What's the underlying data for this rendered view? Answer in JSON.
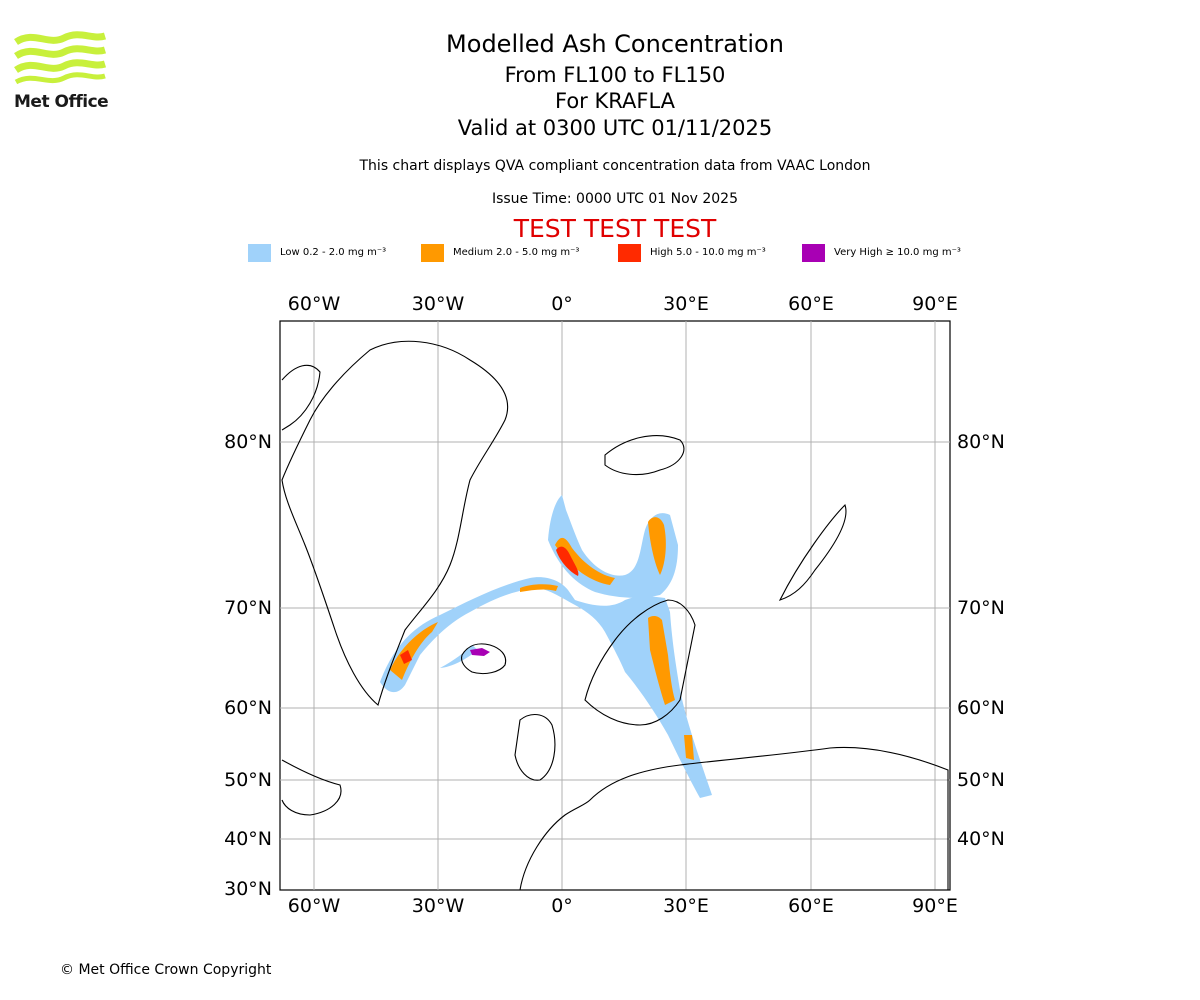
{
  "brand": {
    "logo_text": "Met Office",
    "logo_color": "#c8f03c"
  },
  "header": {
    "title": "Modelled Ash Concentration",
    "flight_levels": "From FL100 to FL150",
    "volcano": "For KRAFLA",
    "valid_time": "Valid at 0300 UTC 01/11/2025",
    "description": "This chart displays QVA compliant concentration data from VAAC London",
    "issue_time": "Issue Time: 0000 UTC 01 Nov 2025",
    "test_banner": "TEST TEST TEST"
  },
  "legend": {
    "items": [
      {
        "label": "Low 0.2 - 2.0 mg m⁻³",
        "color": "#a0d2fa"
      },
      {
        "label": "Medium 2.0 - 5.0 mg m⁻³",
        "color": "#ff9900"
      },
      {
        "label": "High 5.0 - 10.0 mg m⁻³",
        "color": "#ff2a00"
      },
      {
        "label": "Very High ≥ 10.0 mg m⁻³",
        "color": "#a800b4"
      }
    ]
  },
  "map": {
    "longitude_labels": [
      "60°W",
      "30°W",
      "0°",
      "30°E",
      "60°E",
      "90°E"
    ],
    "latitude_labels_left": [
      "80°N",
      "70°N",
      "60°N",
      "50°N",
      "40°N",
      "30°N"
    ],
    "latitude_labels_right": [
      "80°N",
      "70°N",
      "60°N",
      "50°N",
      "40°N"
    ]
  },
  "footer": {
    "copyright": "© Met Office Crown Copyright"
  }
}
